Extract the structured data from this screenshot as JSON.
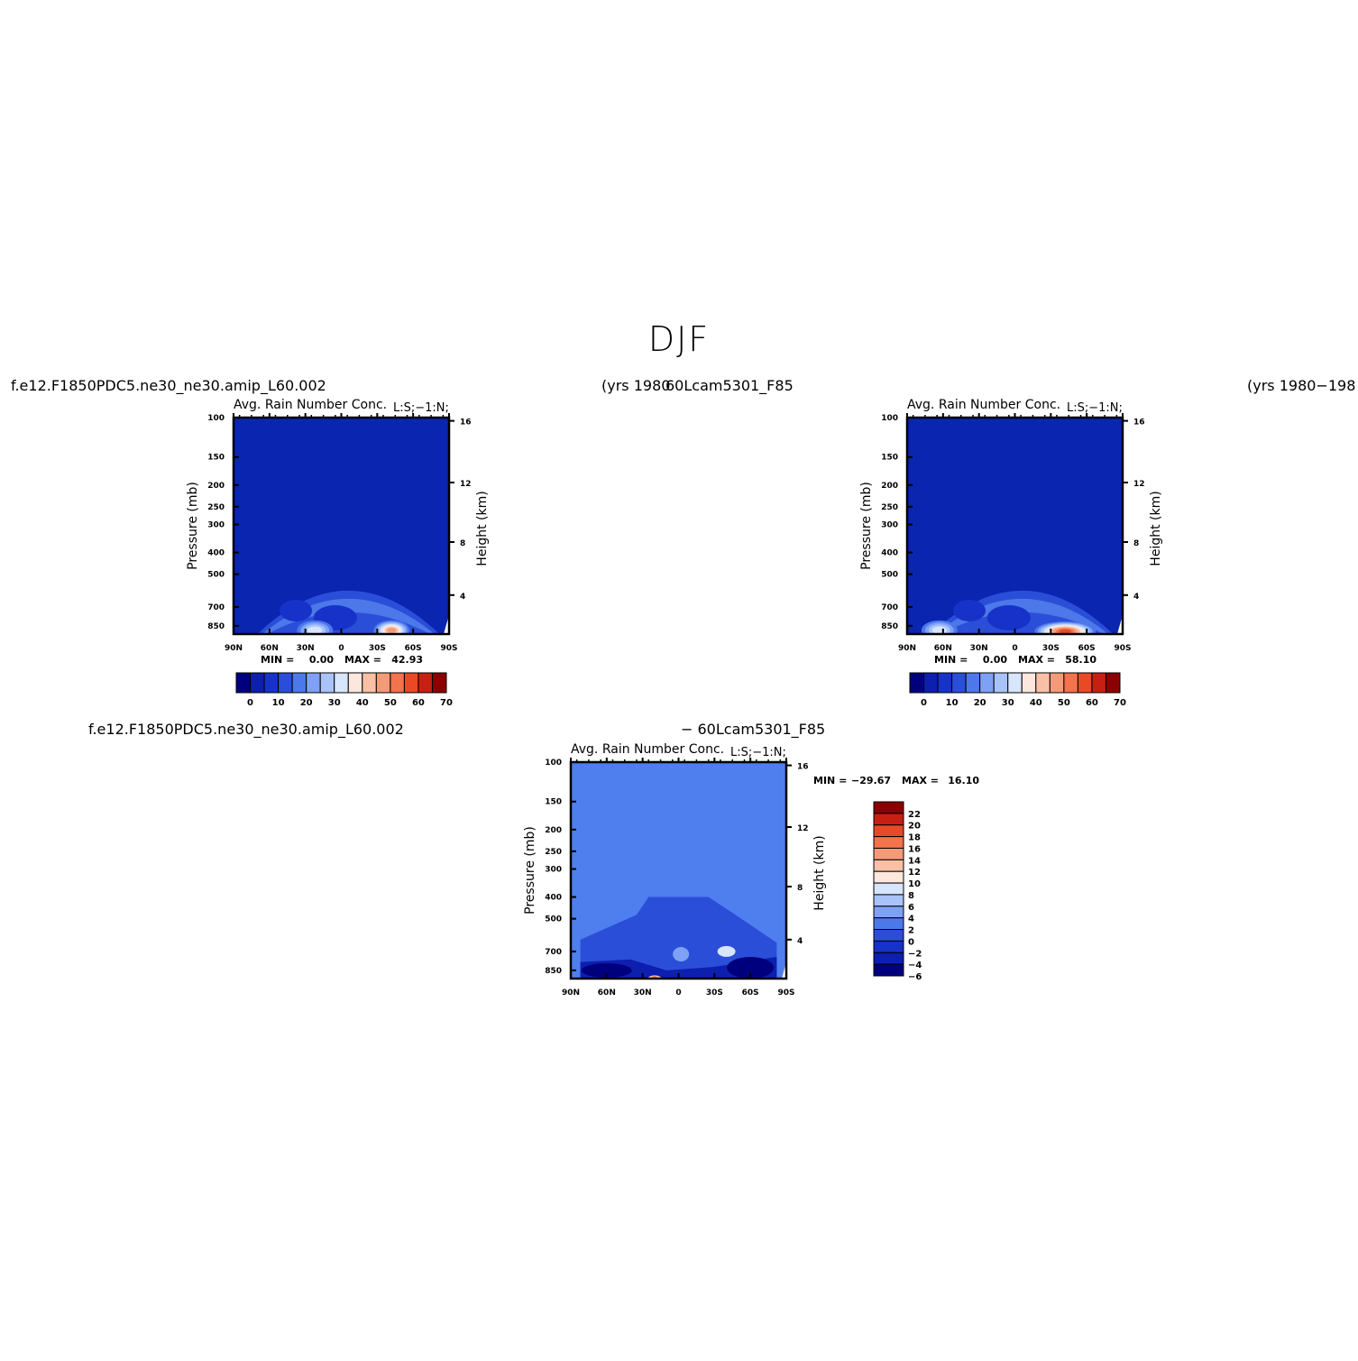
{
  "title": "DJF",
  "case_labels": {
    "top_left": "f.e12.F1850PDC5.ne30_ne30.amip_L60.002",
    "top_mid_years": "(yrs 1980",
    "top_mid_case": "60Lcam5301_F85",
    "top_right_years": "(yrs 1980−198",
    "bottom_left": "f.e12.F1850PDC5.ne30_ne30.amip_L60.002",
    "bottom_mid": "− 60Lcam5301_F85"
  },
  "colors": {
    "abs_levels": [
      "#00007f",
      "#0c1fae",
      "#1732c8",
      "#2b4ed8",
      "#4c78ea",
      "#7ea1f5",
      "#a8c3fa",
      "#d7e5fd",
      "#fde7dc",
      "#f9c0a6",
      "#f59a78",
      "#f2734c",
      "#e84a26",
      "#c62012",
      "#8b0000"
    ],
    "diff_levels": [
      "#00007f",
      "#0c1fae",
      "#1732c8",
      "#2b4ed8",
      "#4c78ea",
      "#7ea1f5",
      "#a8c3fa",
      "#d7e5fd",
      "#fde7dc",
      "#f9c0a6",
      "#f59a78",
      "#f2734c",
      "#e84a26",
      "#c62012",
      "#8b0000"
    ],
    "diff_background": "#4f7eee",
    "abs_background": "#0a25b0"
  },
  "chart_data": [
    {
      "type": "heatmap",
      "title": "Avg. Rain Number Conc.",
      "right_label": "L:S;−1:N;",
      "xlabel": "",
      "ylabel": "Pressure (mb)",
      "y2label": "Height (km)",
      "x_ticks": [
        "90N",
        "60N",
        "30N",
        "0",
        "30S",
        "60S",
        "90S"
      ],
      "y_ticks": [
        "100",
        "150",
        "200",
        "250",
        "300",
        "400",
        "500",
        "700",
        "850"
      ],
      "y2_ticks": [
        "16",
        "12",
        "8",
        "4"
      ],
      "ylim": [
        100,
        1000
      ],
      "xlim": [
        90,
        -90
      ],
      "stats": {
        "min_label": "MIN =",
        "min": "0.00",
        "max_label": "MAX =",
        "max": "42.93"
      },
      "colorbar": {
        "orientation": "horizontal",
        "labels": [
          "0",
          "10",
          "20",
          "30",
          "40",
          "50",
          "60",
          "70"
        ]
      },
      "features": [
        {
          "lat": -42,
          "p": 890,
          "value": 42.9
        },
        {
          "lat": 22,
          "p": 890,
          "value": 28
        }
      ]
    },
    {
      "type": "heatmap",
      "title": "Avg. Rain Number Conc.",
      "right_label": "L:S;−1:N;",
      "xlabel": "",
      "ylabel": "Pressure (mb)",
      "y2label": "Height (km)",
      "x_ticks": [
        "90N",
        "60N",
        "30N",
        "0",
        "30S",
        "60S",
        "90S"
      ],
      "y_ticks": [
        "100",
        "150",
        "200",
        "250",
        "300",
        "400",
        "500",
        "700",
        "850"
      ],
      "y2_ticks": [
        "16",
        "12",
        "8",
        "4"
      ],
      "ylim": [
        100,
        1000
      ],
      "xlim": [
        90,
        -90
      ],
      "stats": {
        "min_label": "MIN =",
        "min": "0.00",
        "max_label": "MAX =",
        "max": "58.10"
      },
      "colorbar": {
        "orientation": "horizontal",
        "labels": [
          "0",
          "10",
          "20",
          "30",
          "40",
          "50",
          "60",
          "70"
        ]
      },
      "features": [
        {
          "lat": -42,
          "p": 900,
          "value": 58.1
        },
        {
          "lat": 63,
          "p": 890,
          "value": 26
        }
      ]
    },
    {
      "type": "heatmap",
      "title": "Avg. Rain Number Conc.",
      "right_label": "L:S;−1:N;",
      "xlabel": "",
      "ylabel": "Pressure (mb)",
      "y2label": "Height (km)",
      "x_ticks": [
        "90N",
        "60N",
        "30N",
        "0",
        "30S",
        "60S",
        "90S"
      ],
      "y_ticks": [
        "100",
        "150",
        "200",
        "250",
        "300",
        "400",
        "500",
        "700",
        "850"
      ],
      "y2_ticks": [
        "16",
        "12",
        "8",
        "4"
      ],
      "ylim": [
        100,
        1000
      ],
      "xlim": [
        90,
        -90
      ],
      "stats": {
        "min_label": "MIN =",
        "min": "−29.67",
        "max_label": "MAX =",
        "max": "16.10"
      },
      "colorbar": {
        "orientation": "vertical",
        "labels": [
          "22",
          "20",
          "18",
          "16",
          "14",
          "12",
          "10",
          "8",
          "6",
          "4",
          "2",
          "0",
          "−2",
          "−4",
          "−6"
        ]
      },
      "features": [
        {
          "lat": 20,
          "p": 920,
          "value": 16.1
        },
        {
          "lat": 60,
          "p": 930,
          "value": -29.7
        },
        {
          "lat": -55,
          "p": 920,
          "value": -20
        }
      ]
    }
  ]
}
